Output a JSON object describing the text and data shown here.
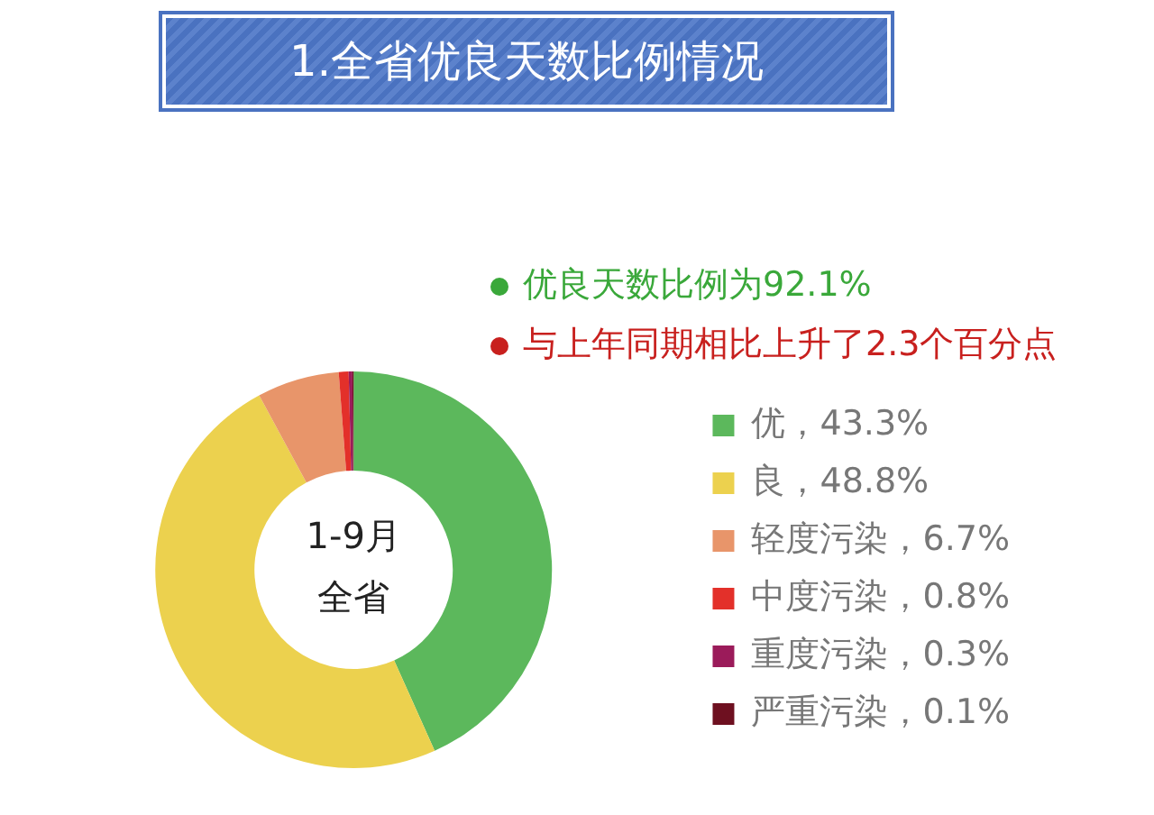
{
  "chart_data": {
    "type": "donut",
    "title": "1.全省优良天数比例情况",
    "categories": [
      "优，43.3%",
      "良，48.8%",
      "轻度污染，6.7%",
      "中度污染，0.8%",
      "重度污染，0.3%",
      "严重污染，0.1%"
    ],
    "values": [
      43.3,
      48.8,
      6.7,
      0.8,
      0.3,
      0.1
    ],
    "colors": [
      "#5cb85c",
      "#ecd14e",
      "#e8956a",
      "#e3302a",
      "#9b1b5a",
      "#6e1020"
    ],
    "legend": "right",
    "annotations": [
      "优良天数比例为92.1%",
      "与上年同期相比上升了2.3个百分点",
      "1-9月",
      "全省"
    ]
  }
}
